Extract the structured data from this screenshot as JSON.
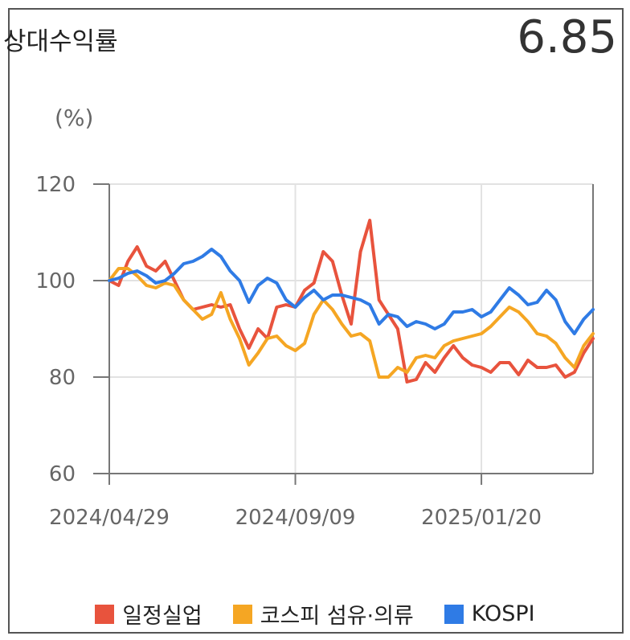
{
  "header": {
    "title": "상대수익률",
    "value": "6.85"
  },
  "chart_data": {
    "type": "line",
    "ylabel": "(%)",
    "ylim": [
      60,
      120
    ],
    "yticks": [
      120,
      100,
      80,
      60
    ],
    "xticks": [
      "2024/04/29",
      "2024/09/09",
      "2025/01/20"
    ],
    "xtick_positions": [
      0,
      20,
      40
    ],
    "grid": true,
    "legend_position": "bottom",
    "series": [
      {
        "name": "일정실업",
        "color": "#e8533d",
        "values": [
          100,
          99,
          104,
          107,
          103,
          102,
          104,
          100,
          96,
          94,
          94.5,
          95,
          94.5,
          95,
          90,
          86,
          90,
          88,
          94.5,
          95,
          94.5,
          98,
          99.5,
          106,
          104,
          97,
          91,
          106,
          112.5,
          96,
          93,
          90,
          79,
          79.5,
          83,
          81,
          84,
          86.5,
          84,
          82.5,
          82,
          81,
          83,
          83,
          80.5,
          83.5,
          82,
          82,
          82.5,
          80,
          81,
          85,
          88
        ]
      },
      {
        "name": "코스피 섬유·의류",
        "color": "#f5a623",
        "values": [
          100,
          102.5,
          102.5,
          101,
          99,
          98.5,
          99.5,
          99,
          96,
          94,
          92,
          93,
          97.5,
          92,
          88,
          82.5,
          85,
          88,
          88.5,
          86.5,
          85.5,
          87,
          93,
          96,
          94,
          91,
          88.5,
          89,
          87.5,
          80,
          80,
          82,
          81,
          84,
          84.5,
          84,
          86.5,
          87.5,
          88,
          88.5,
          89,
          90.5,
          92.5,
          94.5,
          93.5,
          91.5,
          89,
          88.5,
          87,
          84,
          82,
          86.5,
          89
        ]
      },
      {
        "name": "KOSPI",
        "color": "#2f7be5",
        "values": [
          100,
          100.5,
          101.5,
          102,
          101,
          99.5,
          100,
          101.5,
          103.5,
          104,
          105,
          106.5,
          105,
          102,
          100,
          95.5,
          99,
          100.5,
          99.5,
          96,
          94.5,
          96.5,
          98,
          96,
          97,
          97,
          96.5,
          96,
          95,
          91,
          93,
          92.5,
          90.5,
          91.5,
          91,
          90,
          91,
          93.5,
          93.5,
          94,
          92.5,
          93.5,
          96,
          98.5,
          97,
          95,
          95.5,
          98,
          96,
          91.5,
          89,
          92,
          94
        ]
      }
    ]
  }
}
